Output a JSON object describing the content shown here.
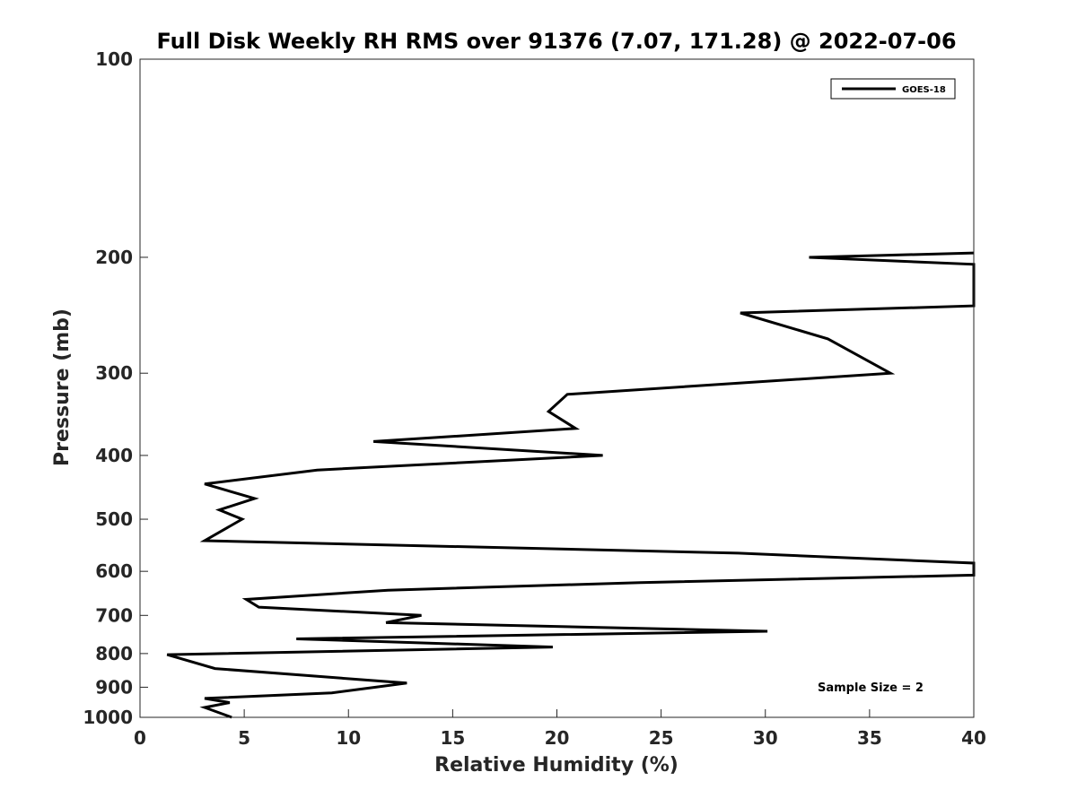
{
  "chart_data": {
    "type": "line",
    "title": "Full Disk Weekly RH RMS over 91376 (7.07, 171.28) @ 2022-07-06",
    "xlabel": "Relative Humidity (%)",
    "ylabel": "Pressure (mb)",
    "xlim": [
      0,
      40
    ],
    "ylim": [
      100,
      1000
    ],
    "yscale": "log",
    "y_reversed": true,
    "xticks": [
      0,
      5,
      10,
      15,
      20,
      25,
      30,
      35,
      40
    ],
    "yticks": [
      100,
      200,
      300,
      400,
      500,
      600,
      700,
      800,
      900,
      1000
    ],
    "xtick_labels": [
      "0",
      "5",
      "10",
      "15",
      "20",
      "25",
      "30",
      "35",
      "40"
    ],
    "ytick_labels": [
      "100",
      "200",
      "300",
      "400",
      "500",
      "600",
      "700",
      "800",
      "900",
      "1000"
    ],
    "grid": false,
    "legend_position": "top-right",
    "annotation": "Sample Size = 2",
    "series": [
      {
        "name": "GOES-18",
        "color": "#000000",
        "points": [
          {
            "rh": 40.0,
            "p": 197
          },
          {
            "rh": 32.1,
            "p": 200
          },
          {
            "rh": 40.0,
            "p": 205
          },
          {
            "rh": 40.0,
            "p": 237
          },
          {
            "rh": 28.8,
            "p": 243
          },
          {
            "rh": 33.0,
            "p": 266
          },
          {
            "rh": 36.0,
            "p": 300
          },
          {
            "rh": 20.5,
            "p": 323
          },
          {
            "rh": 19.6,
            "p": 343
          },
          {
            "rh": 20.9,
            "p": 364
          },
          {
            "rh": 11.2,
            "p": 381
          },
          {
            "rh": 22.2,
            "p": 400
          },
          {
            "rh": 8.5,
            "p": 421
          },
          {
            "rh": 3.1,
            "p": 442
          },
          {
            "rh": 5.5,
            "p": 465
          },
          {
            "rh": 3.8,
            "p": 484
          },
          {
            "rh": 4.9,
            "p": 500
          },
          {
            "rh": 3.1,
            "p": 539
          },
          {
            "rh": 28.7,
            "p": 563
          },
          {
            "rh": 40.0,
            "p": 583
          },
          {
            "rh": 40.0,
            "p": 608
          },
          {
            "rh": 24.0,
            "p": 624
          },
          {
            "rh": 11.9,
            "p": 641
          },
          {
            "rh": 5.1,
            "p": 662
          },
          {
            "rh": 5.7,
            "p": 680
          },
          {
            "rh": 13.5,
            "p": 700
          },
          {
            "rh": 11.8,
            "p": 718
          },
          {
            "rh": 30.1,
            "p": 740
          },
          {
            "rh": 7.5,
            "p": 760
          },
          {
            "rh": 19.8,
            "p": 782
          },
          {
            "rh": 1.3,
            "p": 803
          },
          {
            "rh": 3.6,
            "p": 843
          },
          {
            "rh": 12.8,
            "p": 887
          },
          {
            "rh": 11.3,
            "p": 900
          },
          {
            "rh": 9.2,
            "p": 918
          },
          {
            "rh": 3.1,
            "p": 936
          },
          {
            "rh": 4.3,
            "p": 950
          },
          {
            "rh": 3.1,
            "p": 966
          },
          {
            "rh": 4.4,
            "p": 1000
          }
        ]
      }
    ]
  }
}
